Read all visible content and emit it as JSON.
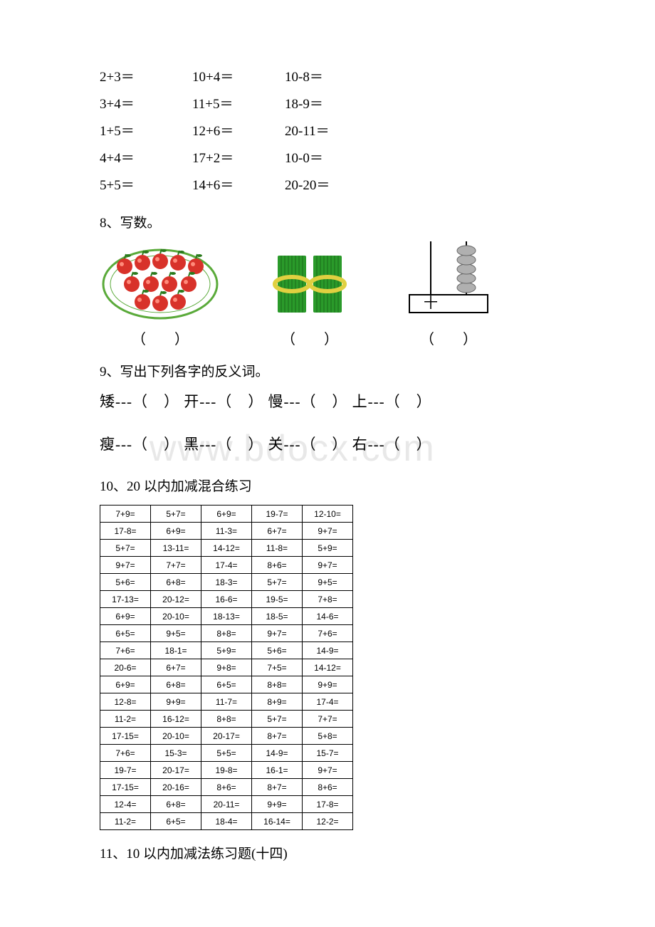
{
  "watermark": "www.bdocx.com",
  "equations_block": {
    "font_size": 19,
    "rows": [
      [
        "2+3＝",
        "10+4＝",
        "10-8＝"
      ],
      [
        "3+4＝",
        "11+5＝",
        "18-9＝"
      ],
      [
        "1+5＝",
        "12+6＝",
        "20-11＝"
      ],
      [
        "4+4＝",
        "17+2＝",
        "10-0＝"
      ],
      [
        "5+5＝",
        "14+6＝",
        "20-20＝"
      ]
    ]
  },
  "section8": {
    "title": "8、写数。",
    "paren": "（　　）",
    "items": [
      {
        "type": "apples",
        "apple_color": "#d8322a",
        "leaf_color": "#2a7a1c",
        "plate_color": "#5aaa3a"
      },
      {
        "type": "sticks",
        "stick_color": "#2a9a2a",
        "band_color": "#e0d040"
      },
      {
        "type": "abacus",
        "bead_color": "#b0b0b0",
        "frame_color": "#000000"
      }
    ]
  },
  "section9": {
    "title": "9、写出下列各字的反义词。",
    "line1": "矮---（　） 开---（　） 慢---（　） 上---（　）",
    "line2": "瘦---（　） 黑---（　） 关---（　） 右---（　）"
  },
  "section10": {
    "title": "10、20 以内加减混合练习",
    "table_font_size": 12,
    "rows": [
      [
        "7+9=",
        "5+7=",
        "6+9=",
        "19-7=",
        "12-10="
      ],
      [
        "17-8=",
        "6+9=",
        "11-3=",
        "6+7=",
        "9+7="
      ],
      [
        "5+7=",
        "13-11=",
        "14-12=",
        "11-8=",
        "5+9="
      ],
      [
        "9+7=",
        "7+7=",
        "17-4=",
        "8+6=",
        "9+7="
      ],
      [
        "5+6=",
        "6+8=",
        "18-3=",
        "5+7=",
        "9+5="
      ],
      [
        "17-13=",
        "20-12=",
        "16-6=",
        "19-5=",
        "7+8="
      ],
      [
        "6+9=",
        "20-10=",
        "18-13=",
        "18-5=",
        "14-6="
      ],
      [
        "6+5=",
        "9+5=",
        "8+8=",
        "9+7=",
        "7+6="
      ],
      [
        "7+6=",
        "18-1=",
        "5+9=",
        "5+6=",
        "14-9="
      ],
      [
        "20-6=",
        "6+7=",
        "9+8=",
        "7+5=",
        "14-12="
      ],
      [
        "6+9=",
        "6+8=",
        "6+5=",
        "8+8=",
        "9+9="
      ],
      [
        "12-8=",
        "9+9=",
        "11-7=",
        "8+9=",
        "17-4="
      ],
      [
        "11-2=",
        "16-12=",
        "8+8=",
        "5+7=",
        "7+7="
      ],
      [
        "17-15=",
        "20-10=",
        "20-17=",
        "8+7=",
        "5+8="
      ],
      [
        "7+6=",
        "15-3=",
        "5+5=",
        "14-9=",
        "15-7="
      ],
      [
        "19-7=",
        "20-17=",
        "19-8=",
        "16-1=",
        "9+7="
      ],
      [
        "17-15=",
        "20-16=",
        "8+6=",
        "8+7=",
        "8+6="
      ],
      [
        "12-4=",
        "6+8=",
        "20-11=",
        "9+9=",
        "17-8="
      ],
      [
        "11-2=",
        "6+5=",
        "18-4=",
        "16-14=",
        "12-2="
      ]
    ]
  },
  "section11": {
    "title": "11、10 以内加减法练习题(十四)"
  }
}
